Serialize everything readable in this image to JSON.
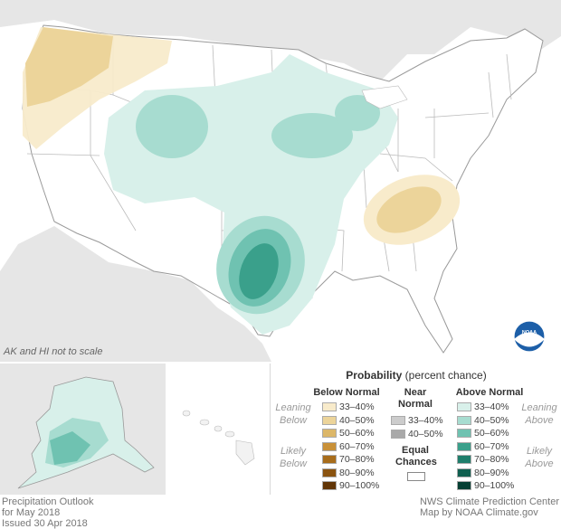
{
  "note": "AK and HI not to scale",
  "legend": {
    "title_bold": "Probability",
    "title_rest": " (percent chance)",
    "below_head": "Below Normal",
    "near_head_1": "Near",
    "near_head_2": "Normal",
    "above_head": "Above Normal",
    "leaning_below_1": "Leaning",
    "leaning_below_2": "Below",
    "likely_below_1": "Likely",
    "likely_below_2": "Below",
    "leaning_above_1": "Leaning",
    "leaning_above_2": "Above",
    "likely_above_1": "Likely",
    "likely_above_2": "Above",
    "equal_1": "Equal",
    "equal_2": "Chances",
    "below": [
      {
        "label": "33–40%",
        "color": "#f8ebcb"
      },
      {
        "label": "40–50%",
        "color": "#ecd49a"
      },
      {
        "label": "50–60%",
        "color": "#dcb769"
      },
      {
        "label": "60–70%",
        "color": "#c99138"
      },
      {
        "label": "70–80%",
        "color": "#a86d1c"
      },
      {
        "label": "80–90%",
        "color": "#8a5310"
      },
      {
        "label": "90–100%",
        "color": "#613506"
      }
    ],
    "near": [
      {
        "label": "33–40%",
        "color": "#cccccc"
      },
      {
        "label": "40–50%",
        "color": "#a9a9a9"
      }
    ],
    "above": [
      {
        "label": "33–40%",
        "color": "#d8f0ea"
      },
      {
        "label": "40–50%",
        "color": "#a7dcd0"
      },
      {
        "label": "50–60%",
        "color": "#6fc2b1"
      },
      {
        "label": "60–70%",
        "color": "#3aa08b"
      },
      {
        "label": "70–80%",
        "color": "#1f7e6b"
      },
      {
        "label": "80–90%",
        "color": "#0f5f4f"
      },
      {
        "label": "90–100%",
        "color": "#053f33"
      }
    ]
  },
  "footer": {
    "left_1": "Precipitation Outlook",
    "left_2": "for May 2018",
    "left_3": "Issued 30 Apr 2018",
    "right_1": "NWS Climate Prediction Center",
    "right_2": "Map by NOAA Climate.gov"
  },
  "colors": {
    "background": "#ffffff",
    "land_outside": "#e6e6e6",
    "state_border": "#bbbbbb",
    "noaa_blue": "#1d5fa8"
  },
  "icons": {
    "logo": "noaa-logo"
  },
  "logo_text": "NOAA"
}
